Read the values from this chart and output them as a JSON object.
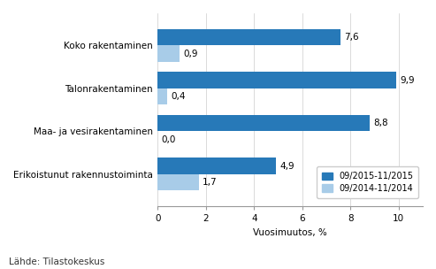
{
  "categories": [
    "Erikoistunut rakennustoiminta",
    "Maa- ja vesirakentaminen",
    "Talonrakentaminen",
    "Koko rakentaminen"
  ],
  "series": [
    {
      "label": "09/2015-11/2015",
      "values": [
        4.9,
        8.8,
        9.9,
        7.6
      ],
      "color": "#2779B8"
    },
    {
      "label": "09/2014-11/2014",
      "values": [
        1.7,
        0.0,
        0.4,
        0.9
      ],
      "color": "#A8CCE8"
    }
  ],
  "bar_labels_s1_str": [
    "4,9",
    "8,8",
    "9,9",
    "7,6"
  ],
  "bar_labels_s2_str": [
    "1,7",
    "0,0",
    "0,4",
    "0,9"
  ],
  "bar_labels_s1": [
    4.9,
    8.8,
    9.9,
    7.6
  ],
  "bar_labels_s2": [
    1.7,
    0.0,
    0.4,
    0.9
  ],
  "xlabel": "Vuosimuutos, %",
  "xlim": [
    0,
    11
  ],
  "xticks": [
    0,
    2,
    4,
    6,
    8,
    10
  ],
  "footer": "Lähde: Tilastokeskus",
  "background_color": "#ffffff",
  "bar_height": 0.38,
  "label_fontsize": 7.5,
  "tick_fontsize": 7.5,
  "footer_fontsize": 7.5
}
